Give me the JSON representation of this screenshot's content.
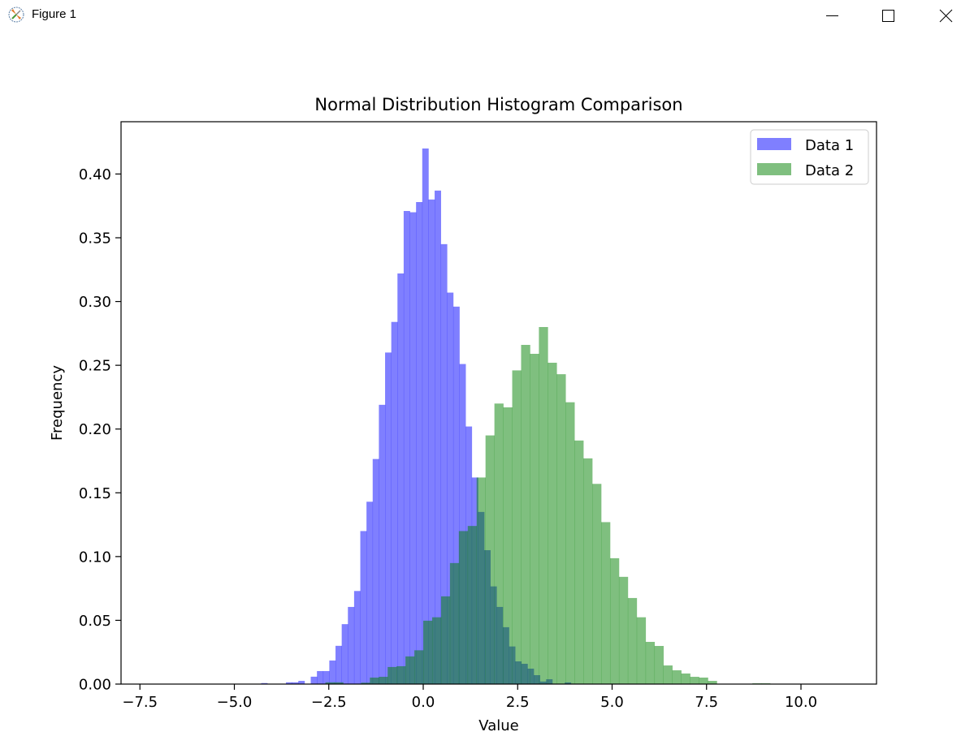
{
  "window": {
    "title": "Figure 1",
    "controls": [
      "minimize",
      "maximize",
      "close"
    ]
  },
  "chart_data": {
    "type": "histogram",
    "title": "Normal Distribution Histogram Comparison",
    "xlabel": "Value",
    "ylabel": "Frequency",
    "xlim": [
      -8.0,
      12.0
    ],
    "ylim": [
      0,
      0.441
    ],
    "xticks": [
      -7.5,
      -5.0,
      -2.5,
      0.0,
      2.5,
      5.0,
      7.5,
      10.0
    ],
    "xtick_labels": [
      "−7.5",
      "−5.0",
      "−2.5",
      "0.0",
      "2.5",
      "5.0",
      "7.5",
      "10.0"
    ],
    "yticks": [
      0.0,
      0.05,
      0.1,
      0.15,
      0.2,
      0.25,
      0.3,
      0.35,
      0.4
    ],
    "ytick_labels": [
      "0.00",
      "0.05",
      "0.10",
      "0.15",
      "0.20",
      "0.25",
      "0.30",
      "0.35",
      "0.40"
    ],
    "grid": false,
    "legend": {
      "position": "top-right",
      "entries": [
        "Data 1",
        "Data 2"
      ]
    },
    "series": [
      {
        "name": "Data 1",
        "color": "#0000ff",
        "alpha": 0.5,
        "bin_start": -4.29,
        "bin_width": 0.164,
        "values": [
          0.0008,
          0,
          0,
          0,
          0.0014,
          0.0014,
          0.0025,
          0,
          0.0058,
          0.0102,
          0.0102,
          0.0185,
          0.03,
          0.047,
          0.0605,
          0.073,
          0.12,
          0.143,
          0.1765,
          0.219,
          0.26,
          0.284,
          0.322,
          0.371,
          0.37,
          0.378,
          0.42,
          0.38,
          0.387,
          0.345,
          0.307,
          0.296,
          0.251,
          0.202,
          0.162,
          0.135,
          0.105,
          0.0766,
          0.0605,
          0.0446,
          0.0295,
          0.0178,
          0.0159,
          0.0121,
          0.007,
          0.002,
          0.0038,
          0,
          0,
          0.0013
        ]
      },
      {
        "name": "Data 2",
        "color": "#008000",
        "alpha": 0.5,
        "bin_start": -2.59,
        "bin_width": 0.2355,
        "values": [
          0.0014,
          0.0014,
          0,
          0,
          0.0011,
          0.0051,
          0.0057,
          0.0134,
          0.014,
          0.0217,
          0.0265,
          0.0497,
          0.0524,
          0.0688,
          0.0949,
          0.12,
          0.124,
          0.162,
          0.195,
          0.22,
          0.217,
          0.246,
          0.266,
          0.259,
          0.28,
          0.252,
          0.243,
          0.221,
          0.191,
          0.177,
          0.157,
          0.127,
          0.0987,
          0.0841,
          0.0675,
          0.0524,
          0.0331,
          0.0299,
          0.0146,
          0.0108,
          0.0083,
          0.0057,
          0.0051,
          0.0025,
          0,
          0,
          0,
          0,
          0.0006,
          0.0006
        ]
      }
    ]
  }
}
